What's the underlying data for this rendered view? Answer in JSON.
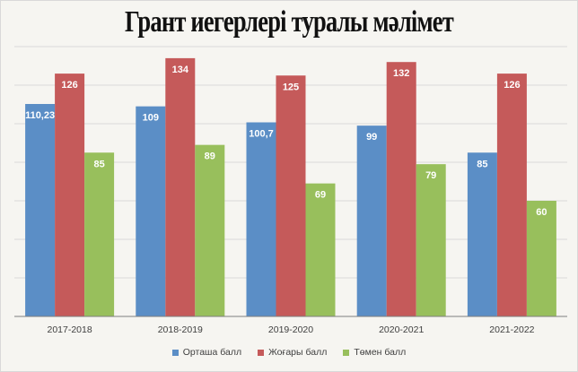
{
  "chart_data": {
    "type": "bar",
    "title": "Грант иегерлері туралы мәлімет",
    "categories": [
      "2017-2018",
      "2018-2019",
      "2019-2020",
      "2020-2021",
      "2021-2022"
    ],
    "series": [
      {
        "name": "Орташа балл",
        "color": "#5b8ec6",
        "values": [
          110.23,
          109,
          100.7,
          99,
          85
        ],
        "labels": [
          "110,23",
          "109",
          "100,7",
          "99",
          "85"
        ]
      },
      {
        "name": "Жоғары балл",
        "color": "#c55a5a",
        "values": [
          126,
          134,
          125,
          132,
          126
        ],
        "labels": [
          "126",
          "134",
          "125",
          "132",
          "126"
        ]
      },
      {
        "name": "Төмен балл",
        "color": "#98bf5c",
        "values": [
          85,
          89,
          69,
          79,
          60
        ],
        "labels": [
          "85",
          "89",
          "69",
          "79",
          "60"
        ]
      }
    ],
    "ylim": [
      0,
      140
    ],
    "grid": true,
    "legend_position": "bottom"
  }
}
